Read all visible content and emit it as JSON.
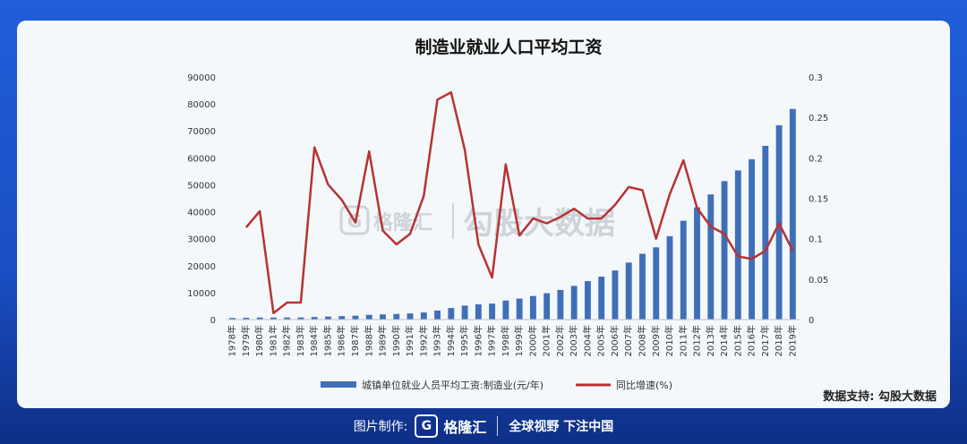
{
  "footer": {
    "made_by_label": "图片制作:",
    "logo_mark": "G",
    "brand": "格隆汇",
    "slogan": "全球视野 下注中国"
  },
  "watermark": {
    "logo_mark": "G",
    "brand": "格隆汇",
    "text": "勾股大数据"
  },
  "colors": {
    "bar": "#3f6fb8",
    "line": "#b83232"
  },
  "chart_data": {
    "type": "bar",
    "title": "制造业就业人口平均工资",
    "source": "数据支持: 勾股大数据",
    "categories": [
      "1978年",
      "1979年",
      "1980年",
      "1981年",
      "1982年",
      "1983年",
      "1984年",
      "1985年",
      "1986年",
      "1987年",
      "1988年",
      "1989年",
      "1990年",
      "1991年",
      "1992年",
      "1993年",
      "1994年",
      "1995年",
      "1996年",
      "1997年",
      "1998年",
      "1999年",
      "2000年",
      "2001年",
      "2002年",
      "2003年",
      "2004年",
      "2005年",
      "2006年",
      "2007年",
      "2008年",
      "2009年",
      "2010年",
      "2011年",
      "2012年",
      "2013年",
      "2014年",
      "2015年",
      "2016年",
      "2017年",
      "2018年",
      "2019年"
    ],
    "series": [
      {
        "name": "城镇单位就业人员平均工资:制造业(元/年)",
        "type": "bar",
        "axis": "left",
        "values": [
          597,
          665,
          752,
          758,
          774,
          790,
          958,
          1118,
          1284,
          1440,
          1740,
          1930,
          2073,
          2289,
          2635,
          3348,
          4283,
          5169,
          5642,
          5933,
          7064,
          7794,
          8750,
          9774,
          11001,
          12496,
          14251,
          15934,
          18225,
          21144,
          24404,
          26810,
          30916,
          36665,
          41650,
          46431,
          51369,
          55324,
          59470,
          64452,
          72088,
          78147
        ]
      },
      {
        "name": "同比增速(%)",
        "type": "line",
        "axis": "right",
        "values": [
          null,
          0.114,
          0.134,
          0.008,
          0.021,
          0.021,
          0.213,
          0.167,
          0.148,
          0.12,
          0.208,
          0.11,
          0.093,
          0.106,
          0.153,
          0.272,
          0.281,
          0.21,
          0.093,
          0.052,
          0.192,
          0.104,
          0.125,
          0.119,
          0.127,
          0.137,
          0.125,
          0.125,
          0.142,
          0.164,
          0.16,
          0.1,
          0.155,
          0.197,
          0.138,
          0.115,
          0.106,
          0.078,
          0.075,
          0.085,
          0.119,
          0.085
        ]
      }
    ],
    "y_left": {
      "min": 0,
      "max": 90000,
      "ticks": [
        "0",
        "10000",
        "20000",
        "30000",
        "40000",
        "50000",
        "60000",
        "70000",
        "80000",
        "90000"
      ]
    },
    "y_right": {
      "min": 0,
      "max": 0.3,
      "ticks": [
        "0",
        "0.05",
        "0.1",
        "0.15",
        "0.2",
        "0.25",
        "0.3"
      ]
    },
    "legend_position": "bottom-center",
    "grid": false
  }
}
